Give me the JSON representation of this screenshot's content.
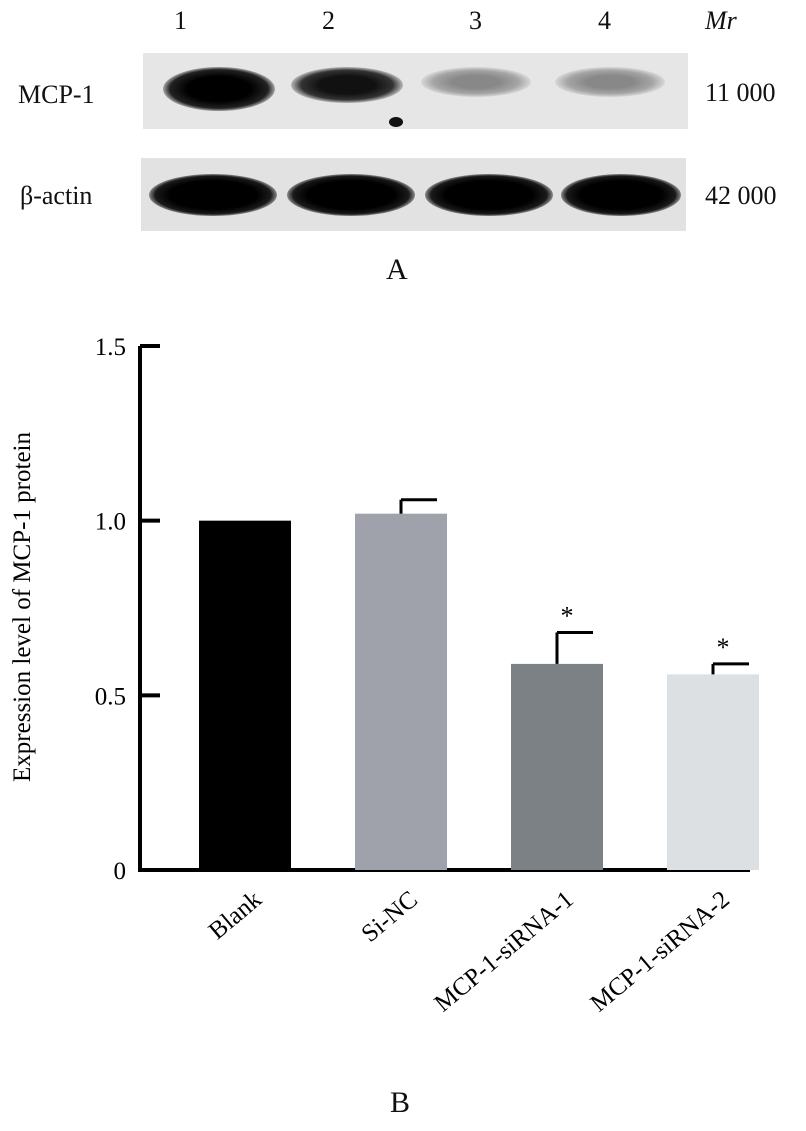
{
  "panel_a": {
    "label": "A",
    "lanes": [
      "1",
      "2",
      "3",
      "4"
    ],
    "mr_label": "Mr",
    "rows": [
      {
        "name": "MCP-1",
        "mw": "11 000"
      },
      {
        "name": "β-actin",
        "mw": "42 000"
      }
    ],
    "band_intensity": {
      "MCP-1": [
        1.0,
        0.85,
        0.45,
        0.45
      ],
      "β-actin": [
        1.0,
        1.0,
        1.0,
        1.0
      ]
    },
    "colors": {
      "blot_bg": "#e4e4e4",
      "band": "#111111"
    }
  },
  "panel_b": {
    "label": "B"
  },
  "chart_data": {
    "type": "bar",
    "categories": [
      "Blank",
      "Si-NC",
      "MCP-1-siRNA-1",
      "MCP-1-siRNA-2"
    ],
    "values": [
      1.0,
      1.02,
      0.59,
      0.56
    ],
    "errors": [
      0,
      0.04,
      0.09,
      0.03
    ],
    "significance": [
      "",
      "",
      "*",
      "*"
    ],
    "bar_colors": [
      "#000000",
      "#9fa2ab",
      "#7c8186",
      "#dde0e3"
    ],
    "ylabel": "Expression level of MCP-1 protein",
    "ylim": [
      0,
      1.5
    ],
    "yticks": [
      0,
      0.5,
      1.0,
      1.5
    ],
    "ytick_labels": [
      "0",
      "0.5",
      "1.0",
      "1.5"
    ],
    "grid": false
  }
}
